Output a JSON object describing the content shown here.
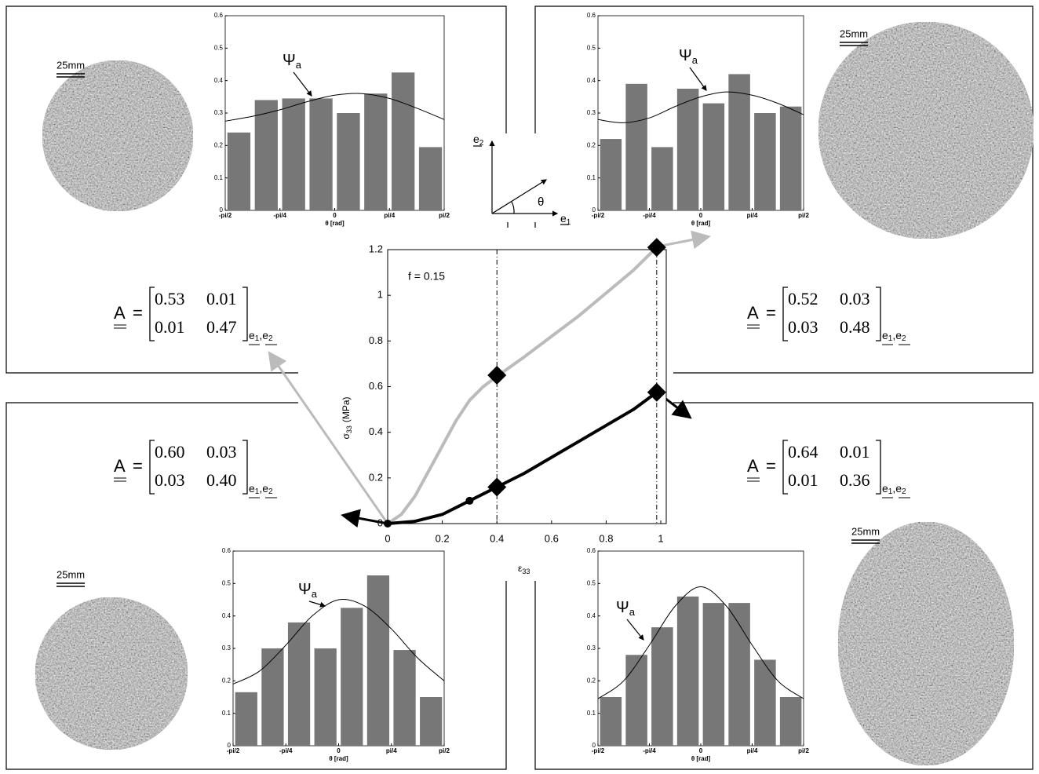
{
  "chart_data": [
    {
      "type": "histogram",
      "xlabel": "θ [rad]",
      "bins": [
        -1.5708,
        -1.1781,
        -0.7854,
        -0.3927,
        0,
        0.3927,
        0.7854,
        1.1781,
        1.5708
      ],
      "values": [
        0.24,
        0.34,
        0.345,
        0.345,
        0.3,
        0.36,
        0.425,
        0.195
      ],
      "color": "#777777",
      "series": [
        {
          "name": "Ψ",
          "name_sub": "a",
          "color": "#000000",
          "x": [
            -1.5708,
            -1.1781,
            -0.7854,
            -0.3927,
            0,
            0.3927,
            0.7854,
            1.1781,
            1.5708
          ],
          "values": [
            0.275,
            0.29,
            0.31,
            0.335,
            0.355,
            0.36,
            0.345,
            0.315,
            0.28
          ]
        }
      ],
      "xlim": [
        -1.5708,
        1.5708
      ],
      "xticks": [
        {
          "value": -1.5708,
          "label": "-pi/2"
        },
        {
          "value": -0.7854,
          "label": "-pi/4"
        },
        0,
        {
          "value": 0.7854,
          "label": "pi/4"
        },
        {
          "value": 1.5708,
          "label": "pi/2"
        }
      ],
      "ylim": [
        0,
        0.6
      ],
      "yticks": [
        0,
        0.1,
        0.2,
        0.3,
        0.4,
        0.5,
        0.6
      ],
      "scale_label": "25mm",
      "matrix": {
        "label": "A",
        "relation": "=",
        "values": [
          [
            "0.53",
            "0.01"
          ],
          [
            "0.01",
            "0.47"
          ]
        ],
        "basis": {
          "letter": "e",
          "indices": [
            "1",
            "2"
          ],
          "separator": ","
        }
      }
    },
    {
      "type": "histogram",
      "xlabel": "θ [rad]",
      "bins": [
        -1.5708,
        -1.1781,
        -0.7854,
        -0.3927,
        0,
        0.3927,
        0.7854,
        1.1781,
        1.5708
      ],
      "values": [
        0.22,
        0.39,
        0.195,
        0.375,
        0.33,
        0.42,
        0.3,
        0.32
      ],
      "color": "#777777",
      "series": [
        {
          "name": "Ψ",
          "name_sub": "a",
          "color": "#000000",
          "x": [
            -1.5708,
            -1.1781,
            -0.7854,
            -0.3927,
            0,
            0.3927,
            0.7854,
            1.1781,
            1.5708
          ],
          "values": [
            0.28,
            0.27,
            0.285,
            0.32,
            0.35,
            0.365,
            0.355,
            0.33,
            0.295
          ]
        }
      ],
      "xlim": [
        -1.5708,
        1.5708
      ],
      "xticks": [
        {
          "value": -1.5708,
          "label": "-pi/2"
        },
        {
          "value": -0.7854,
          "label": "-pi/4"
        },
        0,
        {
          "value": 0.7854,
          "label": "pi/4"
        },
        {
          "value": 1.5708,
          "label": "pi/2"
        }
      ],
      "ylim": [
        0,
        0.6
      ],
      "yticks": [
        0,
        0.1,
        0.2,
        0.3,
        0.4,
        0.5,
        0.6
      ],
      "scale_label": "25mm",
      "matrix": {
        "label": "A",
        "relation": "=",
        "values": [
          [
            "0.52",
            "0.03"
          ],
          [
            "0.03",
            "0.48"
          ]
        ],
        "basis": {
          "letter": "e",
          "indices": [
            "1",
            "2"
          ],
          "separator": ","
        }
      }
    },
    {
      "type": "histogram",
      "xlabel": "θ [rad]",
      "bins": [
        -1.5708,
        -1.1781,
        -0.7854,
        -0.3927,
        0,
        0.3927,
        0.7854,
        1.1781,
        1.5708
      ],
      "values": [
        0.165,
        0.3,
        0.38,
        0.3,
        0.425,
        0.525,
        0.295,
        0.15
      ],
      "color": "#777777",
      "series": [
        {
          "name": "Ψ",
          "name_sub": "a",
          "color": "#000000",
          "x": [
            -1.5708,
            -1.1781,
            -0.7854,
            -0.3927,
            0,
            0.3927,
            0.7854,
            1.1781,
            1.5708
          ],
          "values": [
            0.19,
            0.23,
            0.31,
            0.4,
            0.45,
            0.43,
            0.36,
            0.27,
            0.2
          ]
        }
      ],
      "xlim": [
        -1.5708,
        1.5708
      ],
      "xticks": [
        {
          "value": -1.5708,
          "label": "-pi/2"
        },
        {
          "value": -0.7854,
          "label": "-pi/4"
        },
        0,
        {
          "value": 0.7854,
          "label": "pi/4"
        },
        {
          "value": 1.5708,
          "label": "pi/2"
        }
      ],
      "ylim": [
        0,
        0.6
      ],
      "yticks": [
        0,
        0.1,
        0.2,
        0.3,
        0.4,
        0.5,
        0.6
      ],
      "scale_label": "25mm",
      "matrix": {
        "label": "A",
        "relation": "=",
        "values": [
          [
            "0.60",
            "0.03"
          ],
          [
            "0.03",
            "0.40"
          ]
        ],
        "basis": {
          "letter": "e",
          "indices": [
            "1",
            "2"
          ],
          "separator": ","
        }
      }
    },
    {
      "type": "histogram",
      "xlabel": "θ [rad]",
      "bins": [
        -1.5708,
        -1.1781,
        -0.7854,
        -0.3927,
        0,
        0.3927,
        0.7854,
        1.1781,
        1.5708
      ],
      "values": [
        0.15,
        0.28,
        0.365,
        0.46,
        0.44,
        0.44,
        0.265,
        0.15
      ],
      "color": "#777777",
      "series": [
        {
          "name": "Ψ",
          "name_sub": "a",
          "color": "#000000",
          "x": [
            -1.5708,
            -1.1781,
            -0.7854,
            -0.3927,
            0,
            0.3927,
            0.7854,
            1.1781,
            1.5708
          ],
          "values": [
            0.145,
            0.2,
            0.31,
            0.43,
            0.49,
            0.43,
            0.31,
            0.2,
            0.145
          ]
        }
      ],
      "xlim": [
        -1.5708,
        1.5708
      ],
      "xticks": [
        {
          "value": -1.5708,
          "label": "-pi/2"
        },
        {
          "value": -0.7854,
          "label": "-pi/4"
        },
        0,
        {
          "value": 0.7854,
          "label": "pi/4"
        },
        {
          "value": 1.5708,
          "label": "pi/2"
        }
      ],
      "ylim": [
        0,
        0.6
      ],
      "yticks": [
        0,
        0.1,
        0.2,
        0.3,
        0.4,
        0.5,
        0.6
      ],
      "scale_label": "25mm",
      "matrix": {
        "label": "A",
        "relation": "=",
        "values": [
          [
            "0.64",
            "0.01"
          ],
          [
            "0.01",
            "0.36"
          ]
        ],
        "basis": {
          "letter": "e",
          "indices": [
            "1",
            "2"
          ],
          "separator": ","
        }
      }
    },
    {
      "type": "line",
      "annotation": "f = 0.15",
      "xlabel": {
        "symbol": "ε",
        "sub": "33"
      },
      "ylabel": {
        "symbol": "σ",
        "sub": "33",
        "unit": "(MPa)"
      },
      "xlim": [
        0,
        1.02
      ],
      "xticks": [
        0,
        0.2,
        0.4,
        0.6,
        0.8,
        1
      ],
      "ylim": [
        0,
        1.2
      ],
      "yticks": [
        0,
        0.2,
        0.4,
        0.6,
        0.8,
        1,
        1.2
      ],
      "reference_lines_x": [
        0.4,
        0.985
      ],
      "series": [
        {
          "color": "#bbbbbb",
          "x": [
            0,
            0.05,
            0.1,
            0.15,
            0.2,
            0.25,
            0.3,
            0.35,
            0.4,
            0.5,
            0.6,
            0.7,
            0.8,
            0.9,
            0.985
          ],
          "values": [
            0,
            0.04,
            0.12,
            0.23,
            0.34,
            0.45,
            0.54,
            0.6,
            0.645,
            0.73,
            0.82,
            0.91,
            1.01,
            1.11,
            1.21
          ],
          "marker_x": [
            0.4,
            0.985
          ],
          "marker_y": [
            0.65,
            1.21
          ]
        },
        {
          "color": "#000000",
          "x": [
            0,
            0.1,
            0.2,
            0.3,
            0.4,
            0.5,
            0.6,
            0.7,
            0.8,
            0.9,
            0.985
          ],
          "values": [
            0,
            0.01,
            0.04,
            0.1,
            0.16,
            0.22,
            0.29,
            0.36,
            0.43,
            0.5,
            0.575
          ],
          "marker_x": [
            0.4,
            0.985
          ],
          "marker_y": [
            0.16,
            0.575
          ],
          "dot_x": [
            0,
            0.3
          ],
          "dot_y": [
            0,
            0.1
          ]
        }
      ]
    }
  ],
  "diagram": {
    "e2": {
      "letter": "e",
      "index": "2"
    },
    "e1": {
      "letter": "e",
      "index": "1"
    },
    "angle": "θ"
  }
}
